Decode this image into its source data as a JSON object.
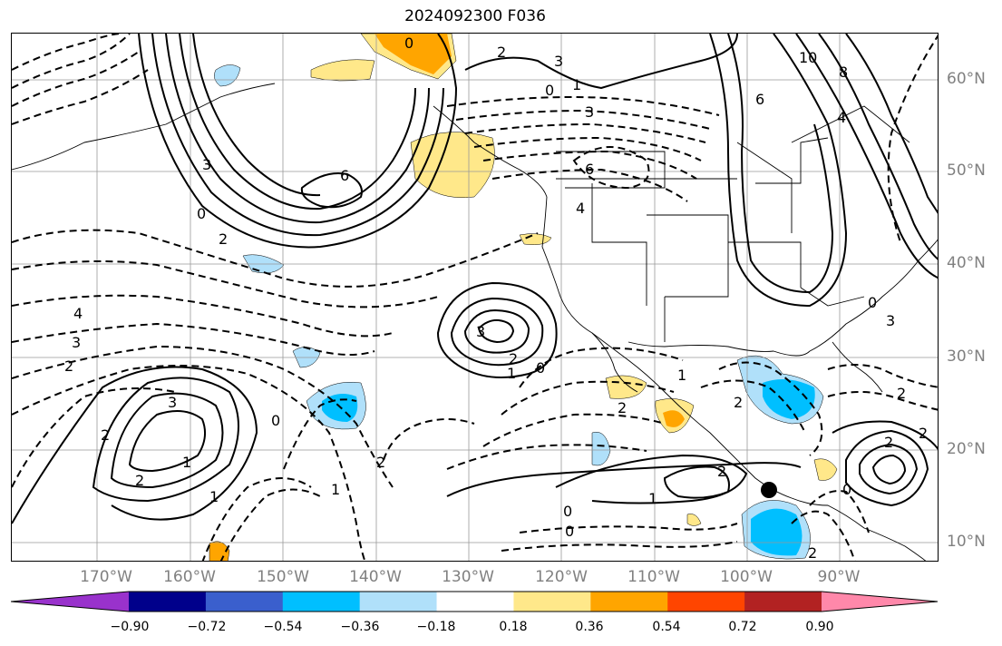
{
  "title": "2024092300 F036",
  "lon_labels": [
    "170°W",
    "160°W",
    "150°W",
    "140°W",
    "130°W",
    "120°W",
    "110°W",
    "100°W",
    "90°W"
  ],
  "lat_labels": [
    "60°N",
    "50°N",
    "40°N",
    "30°N",
    "20°N",
    "10°N"
  ],
  "colorbar": {
    "colors": [
      "#9932cc",
      "#00008b",
      "#3a5fcd",
      "#00bfff",
      "#b0e0fa",
      "#ffffff",
      "#ffe88a",
      "#ffa500",
      "#ff4500",
      "#b22222",
      "#ff88aa"
    ],
    "ticks": [
      "−0.90",
      "−0.72",
      "−0.54",
      "−0.36",
      "−0.18",
      "0.18",
      "0.36",
      "0.54",
      "0.72",
      "0.90"
    ]
  },
  "contour_labels": [
    {
      "text": "0",
      "name": "contour-label-0-gulf-alaska"
    },
    {
      "text": "2",
      "name": "contour-label-2-alaska"
    },
    {
      "text": "3",
      "name": "contour-label-3-yukon"
    },
    {
      "text": "10",
      "name": "contour-label-10-hudson"
    },
    {
      "text": "8",
      "name": "contour-label-8-hudson"
    },
    {
      "text": "6",
      "name": "contour-label-6-canada"
    },
    {
      "text": "0",
      "name": "contour-label-0-bc"
    },
    {
      "text": "1",
      "name": "contour-label-1-bc"
    },
    {
      "text": "3",
      "name": "contour-label-3-bc"
    },
    {
      "text": "4",
      "name": "contour-label-4-greatlakes"
    },
    {
      "text": "6",
      "name": "contour-label-6-pacific-high"
    },
    {
      "text": "3",
      "name": "contour-label-3-pacific"
    },
    {
      "text": "0",
      "name": "contour-label-0-pacific"
    },
    {
      "text": "2",
      "name": "contour-label-2-pacific"
    },
    {
      "text": "6",
      "name": "contour-label-6-nw-us"
    },
    {
      "text": "4",
      "name": "contour-label-4-west-coast"
    },
    {
      "text": "4",
      "name": "contour-label-4-west"
    },
    {
      "text": "3",
      "name": "contour-label-3-west"
    },
    {
      "text": "2",
      "name": "contour-label-2-west"
    },
    {
      "text": "3",
      "name": "contour-label-3-central-high"
    },
    {
      "text": "2",
      "name": "contour-label-2-central-high"
    },
    {
      "text": "1",
      "name": "contour-label-1-central"
    },
    {
      "text": "0",
      "name": "contour-label-0-central"
    },
    {
      "text": "3",
      "name": "contour-label-3-hawaii"
    },
    {
      "text": "2",
      "name": "contour-label-2-hawaii"
    },
    {
      "text": "2",
      "name": "contour-label-2-hawaii-b"
    },
    {
      "text": "1",
      "name": "contour-label-1-hawaii"
    },
    {
      "text": "1",
      "name": "contour-label-1-hawaii-b"
    },
    {
      "text": "0",
      "name": "contour-label-0-east-pacific"
    },
    {
      "text": "2",
      "name": "contour-label-2-east-pacific"
    },
    {
      "text": "1",
      "name": "contour-label-1-east-pacific"
    },
    {
      "text": "1",
      "name": "contour-label-1-baja"
    },
    {
      "text": "2",
      "name": "contour-label-2-baja"
    },
    {
      "text": "2",
      "name": "contour-label-2-gulf-mexico"
    },
    {
      "text": "2",
      "name": "contour-label-2-mexico"
    },
    {
      "text": "1",
      "name": "contour-label-1-mexico"
    },
    {
      "text": "0",
      "name": "contour-label-0-mexico"
    },
    {
      "text": "0",
      "name": "contour-label-0-mexico-b"
    },
    {
      "text": "2",
      "name": "contour-label-2-caribbean"
    },
    {
      "text": "2",
      "name": "contour-label-2-carib-high"
    },
    {
      "text": "0",
      "name": "contour-label-0-carib"
    },
    {
      "text": "2",
      "name": "contour-label-2-central-am"
    },
    {
      "text": "2",
      "name": "contour-label-2-florida"
    },
    {
      "text": "0",
      "name": "contour-label-0-se-us"
    },
    {
      "text": "3",
      "name": "contour-label-3-se-us"
    }
  ]
}
